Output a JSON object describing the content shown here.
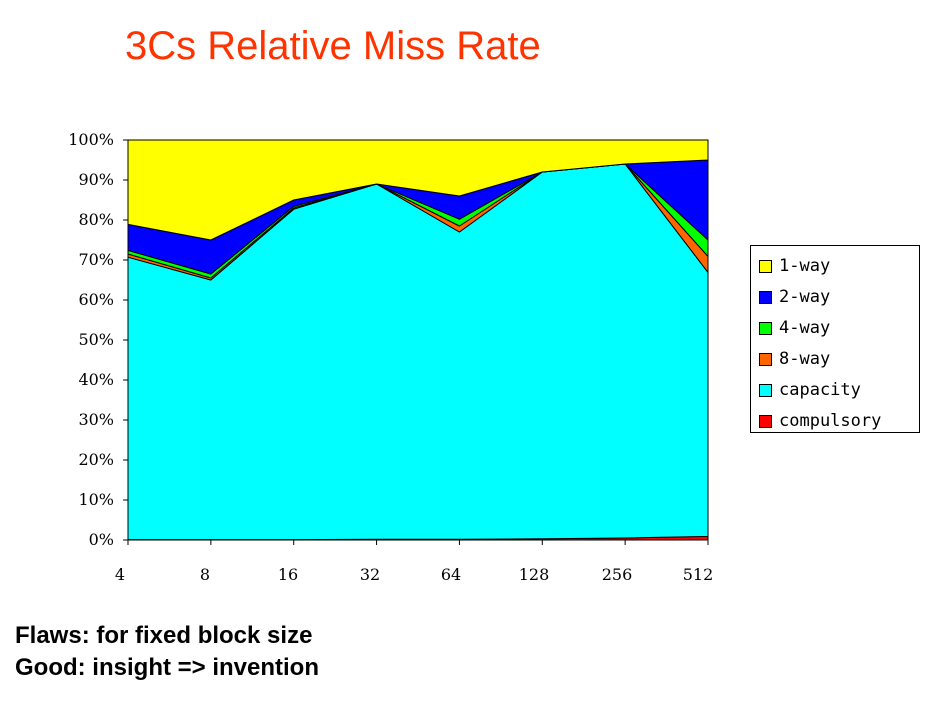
{
  "title": "3Cs Relative Miss Rate",
  "notes": [
    "Flaws: for fixed block size",
    "Good: insight => invention"
  ],
  "chart_data": {
    "type": "area",
    "stacked": true,
    "categories": [
      "4",
      "8",
      "16",
      "32",
      "64",
      "128",
      "256",
      "512"
    ],
    "y_tick_labels": [
      "0%",
      "10%",
      "20%",
      "30%",
      "40%",
      "50%",
      "60%",
      "70%",
      "80%",
      "90%",
      "100%"
    ],
    "ylim": [
      0,
      100
    ],
    "grid": false,
    "legend_position": "right",
    "legend_order": [
      "1-way",
      "2-way",
      "4-way",
      "8-way",
      "capacity",
      "compulsory"
    ],
    "series": [
      {
        "name": "compulsory",
        "color": "#ff0000",
        "values": [
          0.1,
          0.1,
          0.1,
          0.2,
          0.2,
          0.3,
          0.5,
          0.9
        ]
      },
      {
        "name": "capacity",
        "color": "#00ffff",
        "values": [
          70.6,
          64.9,
          82.6,
          88.8,
          76.8,
          91.7,
          93.5,
          66.0
        ]
      },
      {
        "name": "8-way",
        "color": "#ff6600",
        "values": [
          0.8,
          0.5,
          0.3,
          0.0,
          1.5,
          0.0,
          0.0,
          4.0
        ]
      },
      {
        "name": "4-way",
        "color": "#00ff00",
        "values": [
          0.9,
          1.0,
          0.4,
          0.0,
          1.7,
          0.0,
          0.0,
          4.1
        ]
      },
      {
        "name": "2-way",
        "color": "#0000ff",
        "values": [
          6.5,
          8.5,
          1.6,
          0.0,
          5.8,
          0.0,
          0.0,
          20.0
        ]
      },
      {
        "name": "1-way",
        "color": "#ffff00",
        "values": [
          21.1,
          25.0,
          15.0,
          11.0,
          14.0,
          8.0,
          6.0,
          5.0
        ]
      }
    ]
  }
}
